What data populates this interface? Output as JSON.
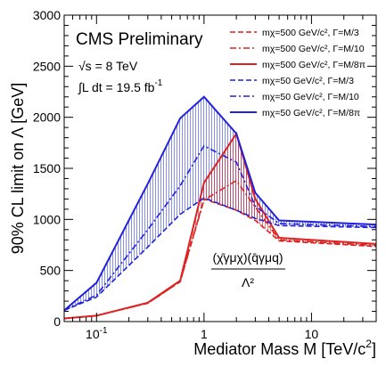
{
  "chart_data": {
    "type": "line",
    "title": "CMS Preliminary",
    "energy_label": "√s = 8 TeV",
    "lumi_label": "∫L dt = 19.5 fb",
    "lumi_exponent": "-1",
    "xlabel": "Mediator Mass M [TeV/c²]",
    "ylabel": "90% CL limit on Λ [GeV]",
    "xscale": "log",
    "xlim": [
      0.05,
      40
    ],
    "ylim": [
      0,
      3000
    ],
    "yticks": [
      0,
      500,
      1000,
      1500,
      2000,
      2500,
      3000
    ],
    "xtick_labels": [
      {
        "value": 0.1,
        "label": "10",
        "exp": "-1"
      },
      {
        "value": 1,
        "label": "1",
        "exp": ""
      },
      {
        "value": 10,
        "label": "10",
        "exp": ""
      }
    ],
    "legend_placement": "top-right",
    "operator_numerator": "(χ̄γμχ)(q̄γμq)",
    "operator_denominator": "Λ²",
    "series": [
      {
        "name": "mχ=500 GeV/c², Γ=M/3",
        "color": "#dd2222",
        "style": "dashed",
        "x": [
          0.05,
          0.1,
          0.3,
          0.6,
          1,
          2,
          3,
          5,
          40
        ],
        "y": [
          30,
          58,
          180,
          390,
          1200,
          1090,
          990,
          790,
          735
        ]
      },
      {
        "name": "mχ=500 GeV/c², Γ=M/10",
        "color": "#dd2222",
        "style": "dashdot",
        "x": [
          0.05,
          0.1,
          0.3,
          0.6,
          1,
          2,
          3,
          5,
          40
        ],
        "y": [
          30,
          58,
          180,
          390,
          1190,
          1380,
          1120,
          800,
          745
        ]
      },
      {
        "name": "mχ=500 GeV/c², Γ=M/8π",
        "color": "#dd2222",
        "style": "solid",
        "x": [
          0.05,
          0.1,
          0.3,
          0.6,
          1,
          2,
          3,
          5,
          40
        ],
        "y": [
          30,
          58,
          185,
          400,
          1360,
          1840,
          1200,
          820,
          760
        ]
      },
      {
        "name": "mχ=50 GeV/c², Γ=M/3",
        "color": "#2222dd",
        "style": "dashed",
        "x": [
          0.05,
          0.1,
          0.3,
          0.6,
          1,
          2,
          3,
          5,
          40
        ],
        "y": [
          110,
          240,
          730,
          1050,
          1210,
          1090,
          1010,
          940,
          920
        ]
      },
      {
        "name": "mχ=50 GeV/c², Γ=M/10",
        "color": "#2222dd",
        "style": "dashdot",
        "x": [
          0.05,
          0.1,
          0.3,
          0.6,
          1,
          2,
          3,
          5,
          40
        ],
        "y": [
          110,
          260,
          900,
          1330,
          1720,
          1560,
          1130,
          960,
          930
        ]
      },
      {
        "name": "mχ=50 GeV/c², Γ=M/8π",
        "color": "#2222dd",
        "style": "solid",
        "x": [
          0.05,
          0.1,
          0.3,
          0.6,
          1,
          2,
          3,
          5,
          40
        ],
        "y": [
          110,
          380,
          1350,
          1990,
          2200,
          1840,
          1260,
          990,
          950
        ]
      }
    ]
  }
}
